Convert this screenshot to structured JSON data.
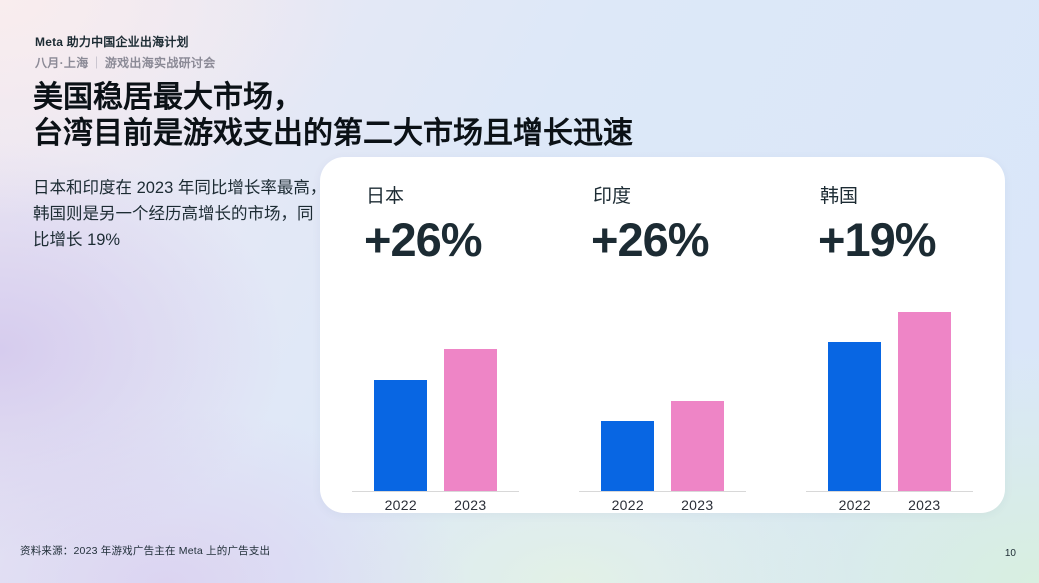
{
  "header": {
    "program": "Meta 助力中国企业出海计划",
    "subtitle_location": "八月·上海",
    "subtitle_separator": "｜",
    "subtitle_event": "游戏出海实战研讨会"
  },
  "title": {
    "line1": "美国稳居最大市场，",
    "line2": "台湾目前是游戏支出的第二大市场且增长迅速"
  },
  "description": "日本和印度在 2023 年同比增长率最高，韩国则是另一个经历高增长的市场，同比增长 19%",
  "chart_data": {
    "type": "bar",
    "categories": [
      "2022",
      "2023"
    ],
    "series": [
      {
        "name": "日本",
        "growth_label": "+26%",
        "values": [
          111,
          142
        ]
      },
      {
        "name": "印度",
        "growth_label": "+26%",
        "values": [
          70,
          90
        ]
      },
      {
        "name": "韩国",
        "growth_label": "+19%",
        "values": [
          149,
          179
        ]
      }
    ],
    "value_unit": "relative-bar-height-px-no-numeric-axis-shown",
    "colors": {
      "bar_2022": "#0866e3",
      "bar_2023": "#ee85c6"
    },
    "legend": "none",
    "gridlines": false,
    "baseline_color": "#d8d8d8"
  },
  "footer": {
    "source": "资料来源：2023 年游戏广告主在 Meta 上的广告支出",
    "page_number": "10"
  }
}
